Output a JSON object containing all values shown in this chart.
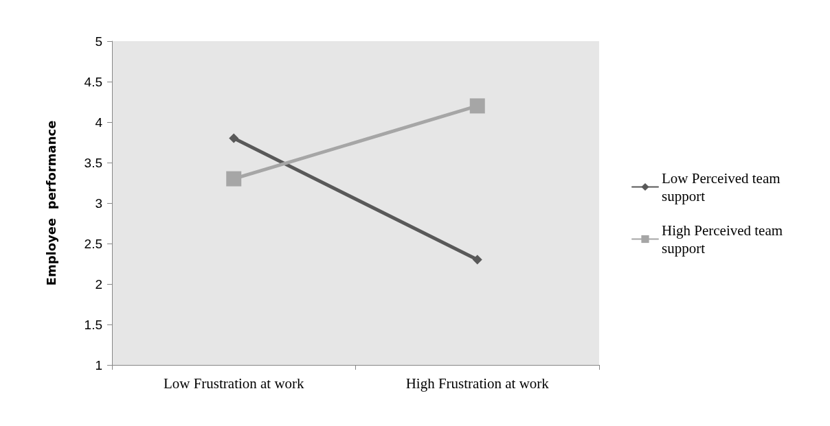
{
  "chart_data": {
    "type": "line",
    "ylabel": "Employee  performance",
    "categories": [
      "Low Frustration at work",
      "High Frustration at work"
    ],
    "series": [
      {
        "name": "Low Perceived team support",
        "color": "#595959",
        "marker": "diamond",
        "values": [
          3.8,
          2.3
        ]
      },
      {
        "name": "High Perceived team support",
        "color": "#a6a6a6",
        "marker": "square",
        "values": [
          3.3,
          4.2
        ]
      }
    ],
    "ylim": [
      1,
      5
    ],
    "yticks": [
      1,
      1.5,
      2,
      2.5,
      3,
      3.5,
      4,
      4.5,
      5
    ],
    "grid": false,
    "legend": "right",
    "line_style": "solid"
  }
}
